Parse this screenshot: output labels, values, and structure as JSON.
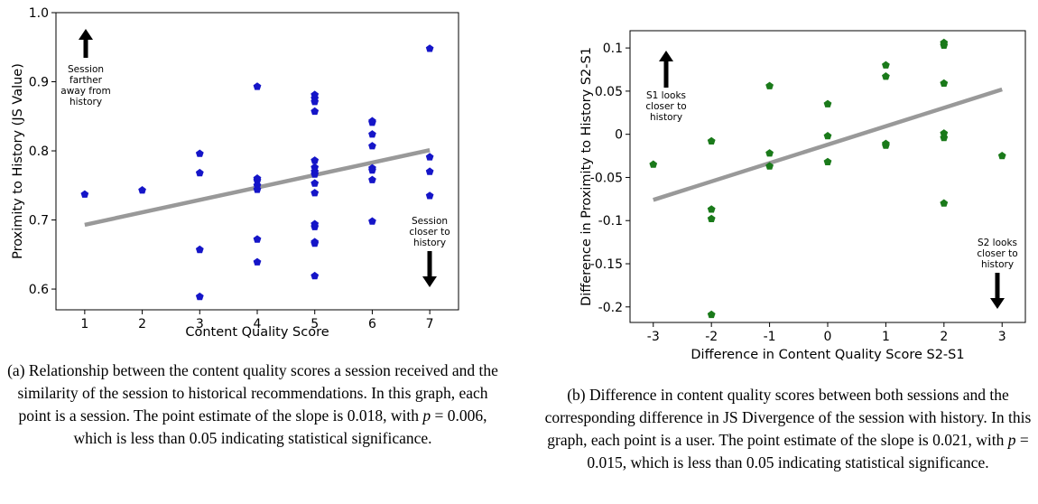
{
  "chart_data": [
    {
      "type": "scatter",
      "xlabel": "Content Quality Score",
      "ylabel": "Proximity to History (JS Value)",
      "xlim": [
        0.5,
        7.5
      ],
      "ylim": [
        0.57,
        1.0
      ],
      "xticks": [
        "1",
        "2",
        "3",
        "4",
        "5",
        "6",
        "7"
      ],
      "yticks": [
        "0.6",
        "0.7",
        "0.8",
        "0.9",
        "1.0"
      ],
      "point_color": "#1515c8",
      "trend_color": "#999999",
      "trend_line": {
        "x": [
          1,
          7
        ],
        "y": [
          0.693,
          0.801
        ]
      },
      "x": [
        1,
        2,
        3,
        3,
        3,
        3,
        4,
        4,
        4,
        4,
        4,
        4,
        4,
        5,
        5,
        5,
        5,
        5,
        5,
        5,
        5,
        5,
        5,
        5,
        5,
        5,
        5,
        5,
        6,
        6,
        6,
        6,
        6,
        6,
        6,
        6,
        7,
        7,
        7,
        7
      ],
      "y": [
        0.737,
        0.743,
        0.796,
        0.768,
        0.657,
        0.589,
        0.893,
        0.76,
        0.757,
        0.75,
        0.744,
        0.672,
        0.639,
        0.881,
        0.876,
        0.871,
        0.857,
        0.786,
        0.776,
        0.77,
        0.766,
        0.753,
        0.739,
        0.694,
        0.69,
        0.668,
        0.666,
        0.619,
        0.843,
        0.841,
        0.824,
        0.807,
        0.775,
        0.772,
        0.758,
        0.698,
        0.948,
        0.791,
        0.77,
        0.735
      ],
      "annotations": {
        "up": [
          "Session",
          "farther",
          "away from",
          "history"
        ],
        "down": [
          "Session",
          "closer to",
          "history"
        ]
      }
    },
    {
      "type": "scatter",
      "xlabel": "Difference in Content Quality Score S2-S1",
      "ylabel": "Difference in Proximity to History S2-S1",
      "xlim": [
        -3.4,
        3.4
      ],
      "ylim": [
        -0.218,
        0.12
      ],
      "xticks": [
        "-3",
        "-2",
        "-1",
        "0",
        "1",
        "2",
        "3"
      ],
      "yticks": [
        "0.1",
        "0.05",
        "0",
        "-0.05",
        "-0.1",
        "-0.15",
        "-0.2"
      ],
      "point_color": "#1a7a1a",
      "trend_color": "#999999",
      "trend_line": {
        "x": [
          -3,
          3
        ],
        "y": [
          -0.076,
          0.052
        ]
      },
      "x": [
        -3,
        -2,
        -2,
        -2,
        -2,
        -1,
        -1,
        -1,
        0,
        0,
        0,
        1,
        1,
        1,
        1,
        2,
        2,
        2,
        2,
        2,
        2,
        3
      ],
      "y": [
        -0.035,
        -0.008,
        -0.087,
        -0.098,
        -0.209,
        0.056,
        -0.022,
        -0.037,
        0.035,
        -0.002,
        -0.032,
        0.08,
        0.067,
        -0.011,
        -0.013,
        0.106,
        0.103,
        0.059,
        0.001,
        -0.004,
        -0.08,
        -0.025
      ],
      "annotations": {
        "up": [
          "S1 looks",
          "closer to",
          "history"
        ],
        "down": [
          "S2 looks",
          "closer to",
          "history"
        ]
      }
    }
  ],
  "captions": {
    "a": {
      "lead": "(a) Relationship between the content quality scores a session received and the similarity of the session to historical recommendations. In this graph, each point is a session. The point estimate of the slope is 0.018, with",
      "p": "p",
      "tail": "= 0.006, which is less than 0.05 indicating statistical significance."
    },
    "b": {
      "lead": "(b) Difference in content quality scores between both sessions and the corresponding difference in JS Divergence of the session with history. In this graph, each point is a user. The point estimate of the slope is 0.021, with",
      "p": "p",
      "tail": "= 0.015, which is less than 0.05 indicating statistical significance."
    }
  }
}
